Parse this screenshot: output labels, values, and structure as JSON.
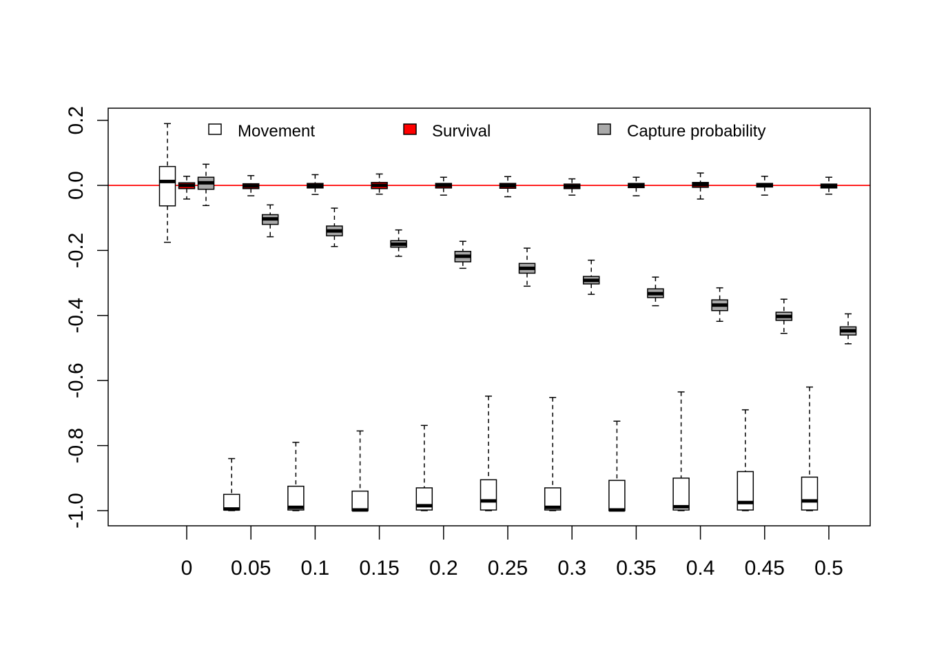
{
  "chart_data": {
    "type": "boxplot",
    "title": "",
    "xlabel": "",
    "ylabel": "",
    "categories": [
      "0",
      "0.05",
      "0.1",
      "0.15",
      "0.2",
      "0.25",
      "0.3",
      "0.35",
      "0.4",
      "0.45",
      "0.5"
    ],
    "ylim": [
      -1.05,
      0.24
    ],
    "yticks": [
      -1.0,
      -0.8,
      -0.6,
      -0.4,
      -0.2,
      0.0,
      0.2
    ],
    "ytick_labels": [
      "-1.0",
      "-0.8",
      "-0.6",
      "-0.4",
      "-0.2",
      "0.0",
      "0.2"
    ],
    "reference_line": {
      "y": 0,
      "color": "#ff0000"
    },
    "grid": false,
    "legend": {
      "placement": "top",
      "entries": [
        {
          "label": "Movement",
          "color": "#ffffff"
        },
        {
          "label": "Survival",
          "color": "#ff0000"
        },
        {
          "label": "Capture probability",
          "color": "#a9a9a9"
        }
      ]
    },
    "series": [
      {
        "name": "Movement",
        "color": "#ffffff",
        "boxes": [
          {
            "whisker_low": -0.175,
            "q1": -0.063,
            "median": 0.012,
            "q3": 0.058,
            "whisker_high": 0.19
          },
          {
            "whisker_low": -1.0,
            "q1": -0.998,
            "median": -0.995,
            "q3": -0.95,
            "whisker_high": -0.84
          },
          {
            "whisker_low": -1.0,
            "q1": -0.998,
            "median": -0.99,
            "q3": -0.925,
            "whisker_high": -0.79
          },
          {
            "whisker_low": -1.0,
            "q1": -1.0,
            "median": -0.998,
            "q3": -0.94,
            "whisker_high": -0.755
          },
          {
            "whisker_low": -1.0,
            "q1": -0.998,
            "median": -0.985,
            "q3": -0.93,
            "whisker_high": -0.738
          },
          {
            "whisker_low": -1.0,
            "q1": -0.998,
            "median": -0.97,
            "q3": -0.905,
            "whisker_high": -0.648
          },
          {
            "whisker_low": -1.0,
            "q1": -0.998,
            "median": -0.99,
            "q3": -0.93,
            "whisker_high": -0.652
          },
          {
            "whisker_low": -1.0,
            "q1": -1.0,
            "median": -0.998,
            "q3": -0.907,
            "whisker_high": -0.725
          },
          {
            "whisker_low": -1.0,
            "q1": -0.998,
            "median": -0.988,
            "q3": -0.9,
            "whisker_high": -0.635
          },
          {
            "whisker_low": -1.0,
            "q1": -0.998,
            "median": -0.975,
            "q3": -0.88,
            "whisker_high": -0.69
          },
          {
            "whisker_low": -1.0,
            "q1": -0.998,
            "median": -0.97,
            "q3": -0.897,
            "whisker_high": -0.62
          }
        ]
      },
      {
        "name": "Survival",
        "color": "#ff0000",
        "boxes": [
          {
            "whisker_low": -0.042,
            "q1": -0.01,
            "median": 0.0,
            "q3": 0.008,
            "whisker_high": 0.028
          },
          {
            "whisker_low": -0.032,
            "q1": -0.01,
            "median": -0.002,
            "q3": 0.005,
            "whisker_high": 0.03
          },
          {
            "whisker_low": -0.028,
            "q1": -0.008,
            "median": -0.001,
            "q3": 0.006,
            "whisker_high": 0.033
          },
          {
            "whisker_low": -0.027,
            "q1": -0.01,
            "median": 0.0,
            "q3": 0.009,
            "whisker_high": 0.035
          },
          {
            "whisker_low": -0.03,
            "q1": -0.008,
            "median": 0.0,
            "q3": 0.006,
            "whisker_high": 0.025
          },
          {
            "whisker_low": -0.035,
            "q1": -0.009,
            "median": -0.001,
            "q3": 0.006,
            "whisker_high": 0.027
          },
          {
            "whisker_low": -0.03,
            "q1": -0.01,
            "median": -0.003,
            "q3": 0.004,
            "whisker_high": 0.02
          },
          {
            "whisker_low": -0.032,
            "q1": -0.007,
            "median": 0.0,
            "q3": 0.006,
            "whisker_high": 0.025
          },
          {
            "whisker_low": -0.042,
            "q1": -0.006,
            "median": 0.002,
            "q3": 0.009,
            "whisker_high": 0.038
          },
          {
            "whisker_low": -0.03,
            "q1": -0.005,
            "median": 0.0,
            "q3": 0.006,
            "whisker_high": 0.028
          },
          {
            "whisker_low": -0.027,
            "q1": -0.008,
            "median": -0.002,
            "q3": 0.004,
            "whisker_high": 0.025
          }
        ]
      },
      {
        "name": "Capture probability",
        "color": "#a9a9a9",
        "boxes": [
          {
            "whisker_low": -0.062,
            "q1": -0.012,
            "median": 0.008,
            "q3": 0.025,
            "whisker_high": 0.065
          },
          {
            "whisker_low": -0.158,
            "q1": -0.12,
            "median": -0.103,
            "q3": -0.09,
            "whisker_high": -0.06
          },
          {
            "whisker_low": -0.188,
            "q1": -0.155,
            "median": -0.14,
            "q3": -0.125,
            "whisker_high": -0.07
          },
          {
            "whisker_low": -0.218,
            "q1": -0.19,
            "median": -0.181,
            "q3": -0.17,
            "whisker_high": -0.137
          },
          {
            "whisker_low": -0.255,
            "q1": -0.235,
            "median": -0.218,
            "q3": -0.203,
            "whisker_high": -0.172
          },
          {
            "whisker_low": -0.31,
            "q1": -0.27,
            "median": -0.255,
            "q3": -0.24,
            "whisker_high": -0.193
          },
          {
            "whisker_low": -0.335,
            "q1": -0.303,
            "median": -0.292,
            "q3": -0.28,
            "whisker_high": -0.23
          },
          {
            "whisker_low": -0.37,
            "q1": -0.345,
            "median": -0.333,
            "q3": -0.318,
            "whisker_high": -0.282
          },
          {
            "whisker_low": -0.418,
            "q1": -0.385,
            "median": -0.368,
            "q3": -0.352,
            "whisker_high": -0.315
          },
          {
            "whisker_low": -0.455,
            "q1": -0.415,
            "median": -0.403,
            "q3": -0.39,
            "whisker_high": -0.35
          },
          {
            "whisker_low": -0.487,
            "q1": -0.46,
            "median": -0.447,
            "q3": -0.435,
            "whisker_high": -0.395
          }
        ]
      }
    ]
  }
}
